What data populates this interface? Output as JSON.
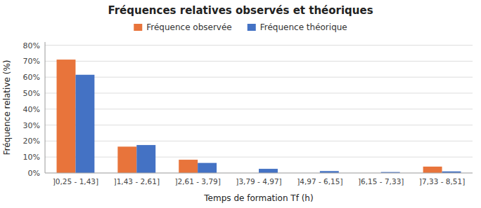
{
  "chart_data": {
    "type": "bar",
    "title": "Fréquences relatives observés et théoriques",
    "xlabel": "Temps de formation Tf (h)",
    "ylabel": "Fréquence relative (%)",
    "categories": [
      "]0,25 - 1,43]",
      "]1,43 - 2,61]",
      "]2,61 - 3,79]",
      "]3,79 - 4,97]",
      "]4,97 - 6,15]",
      "]6,15 - 7,33]",
      "]7,33 - 8,51]"
    ],
    "series": [
      {
        "name": "Fréquence observée",
        "color": "#E8743B",
        "values": [
          0.71,
          0.165,
          0.083,
          0.0,
          0.0,
          0.0,
          0.04
        ]
      },
      {
        "name": "Fréquence théorique",
        "color": "#4472C4",
        "values": [
          0.615,
          0.175,
          0.063,
          0.026,
          0.012,
          0.006,
          0.01
        ]
      }
    ],
    "ylim": [
      0,
      0.82
    ],
    "yticks": [
      {
        "value": 0.0,
        "label": "0%"
      },
      {
        "value": 0.1,
        "label": "10%"
      },
      {
        "value": 0.2,
        "label": "20%"
      },
      {
        "value": 0.3,
        "label": "30%"
      },
      {
        "value": 0.4,
        "label": "40%"
      },
      {
        "value": 0.5,
        "label": "50%"
      },
      {
        "value": 0.6,
        "label": "60%"
      },
      {
        "value": 0.7,
        "label": "70%"
      },
      {
        "value": 0.8,
        "label": "80%"
      }
    ],
    "grid": true,
    "legend": "top"
  }
}
